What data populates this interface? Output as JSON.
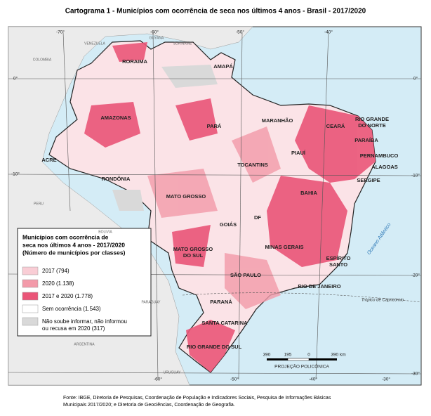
{
  "title": "Cartograma 1 - Municípios com ocorrência de seca nos últimos 4 anos - Brasil - 2017/2020",
  "coordinates": {
    "top": [
      "-70°",
      "-60°",
      "-50°",
      "-40°"
    ],
    "left": [
      "0°",
      "-10°"
    ],
    "right": [
      "0°",
      "-10°",
      "-20°",
      "-30°"
    ],
    "bottom": [
      "-60°",
      "-50°",
      "-40°",
      "-30°"
    ]
  },
  "countries": [
    "VENEZUELA",
    "GUYANA",
    "SURINAME",
    "COLOMBIA",
    "PERU",
    "BOLIVIA",
    "PARAGUAY",
    "ARGENTINA",
    "URUGUAY"
  ],
  "states": [
    [
      "RORAIMA"
    ],
    [
      "AMAPÁ"
    ],
    [
      "AMAZONAS"
    ],
    [
      "PARÁ"
    ],
    [
      "MARANHÃO"
    ],
    [
      "CEARÁ"
    ],
    [
      "RIO GRANDE",
      "DO NORTE"
    ],
    [
      "PARAÍBA"
    ],
    [
      "PERNAMBUCO"
    ],
    [
      "ALAGOAS"
    ],
    [
      "SERGIPE"
    ],
    [
      "PIAUÍ"
    ],
    [
      "TOCANTINS"
    ],
    [
      "ACRE"
    ],
    [
      "RONDÔNIA"
    ],
    [
      "MATO GROSSO"
    ],
    [
      "BAHIA"
    ],
    [
      "GOIÁS"
    ],
    [
      "DF"
    ],
    [
      "MATO GROSSO",
      "DO SUL"
    ],
    [
      "MINAS GERAIS"
    ],
    [
      "ESPÍRITO",
      "SANTO"
    ],
    [
      "SÃO PAULO"
    ],
    [
      "RIO DE JANEIRO"
    ],
    [
      "PARANÁ"
    ],
    [
      "SANTA CATARINA"
    ],
    [
      "RIO GRANDE DO SUL"
    ]
  ],
  "ocean_labels": [
    "Oceano Atlântico",
    "Trópico de Capricórnio"
  ],
  "legend": {
    "title": [
      "Municípios com ocorrência de",
      "seca nos últimos 4 anos - 2017/2020",
      "(Número de municípios por classes)"
    ],
    "items": [
      {
        "label": [
          "2017 (794)"
        ],
        "color": "#f9cdd5"
      },
      {
        "label": [
          "2020 (1.138)"
        ],
        "color": "#f39aa9"
      },
      {
        "label": [
          "2017 e 2020 (1.778)"
        ],
        "color": "#ea5578"
      },
      {
        "label": [
          "Sem ocorrência (1.543)"
        ],
        "color": "#ffffff"
      },
      {
        "label": [
          "Não soube informar, não informou",
          "ou recusa em 2020 (317)"
        ],
        "color": "#d9d9d9"
      }
    ]
  },
  "scale": {
    "ticks": [
      "390",
      "195",
      "0",
      "390 km"
    ],
    "label": "PROJEÇÃO POLICÔNICA"
  },
  "source": [
    "Fonte: IBGE, Diretoria de Pesquisas, Coordenação de População e Indicadores Sociais, Pesquisa de Informações Básicas",
    "Municipais 2017/2020; e Diretoria de Geociências, Coordenação de Geografia."
  ]
}
